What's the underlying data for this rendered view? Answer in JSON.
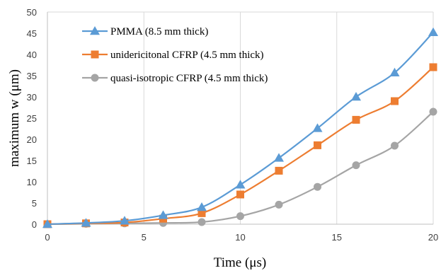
{
  "chart_data": {
    "type": "line",
    "title": "",
    "xlabel": "Time (μs)",
    "ylabel": "maximum w (μm)",
    "xlim": [
      0,
      20
    ],
    "ylim": [
      0,
      50
    ],
    "x_ticks": [
      0,
      5,
      10,
      15,
      20
    ],
    "y_ticks": [
      0,
      5,
      10,
      15,
      20,
      25,
      30,
      35,
      40,
      45,
      50
    ],
    "grid": "vertical",
    "legend_position": "top-left",
    "x": [
      0,
      2,
      4,
      6,
      8,
      10,
      12,
      14,
      16,
      18,
      20
    ],
    "series": [
      {
        "name": "PMMA (8.5 mm thick)",
        "color": "#5B9BD5",
        "marker": "triangle",
        "values": [
          0,
          0.3,
          0.8,
          2.1,
          4.0,
          9.3,
          15.6,
          22.6,
          30.0,
          35.7,
          45.2
        ]
      },
      {
        "name": "unidericitonal CFRP (4.5 mm thick)",
        "color": "#ED7D31",
        "marker": "square",
        "values": [
          0,
          0.2,
          0.4,
          1.3,
          2.6,
          7.0,
          12.6,
          18.6,
          24.6,
          29.0,
          37.0
        ]
      },
      {
        "name": "quasi-isotropic CFRP (4.5 mm thick)",
        "color": "#A5A5A5",
        "marker": "circle",
        "values": [
          0,
          0.1,
          0.2,
          0.3,
          0.5,
          1.9,
          4.6,
          8.8,
          13.9,
          18.5,
          26.5
        ]
      }
    ]
  }
}
